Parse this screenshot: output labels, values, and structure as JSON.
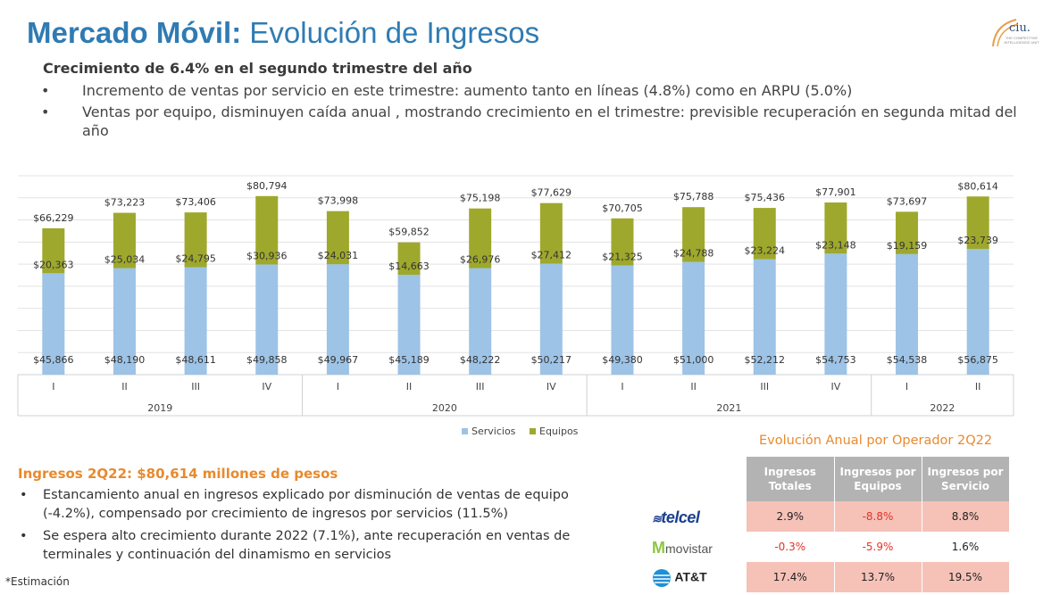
{
  "header": {
    "title_bold": "Mercado Móvil:",
    "title_rest": " Evolución de Ingresos",
    "logo_text": "ciu.",
    "logo_subtext": "THE COMPETITIVE INTELLIGENCE UNIT"
  },
  "summary": {
    "subtitle": "Crecimiento de 6.4% en el  segundo trimestre del año",
    "bullets": [
      "Incremento de ventas por servicio en este trimestre: aumento tanto  en líneas (4.8%) como en ARPU (5.0%)",
      "Ventas por equipo, disminuyen caída anual , mostrando crecimiento en el trimestre: previsible recuperación en segunda mitad del año"
    ]
  },
  "chart_data": {
    "type": "bar",
    "stacked": true,
    "categories": [
      "I",
      "II",
      "III",
      "IV",
      "I",
      "II",
      "III",
      "IV",
      "I",
      "II",
      "III",
      "IV",
      "I",
      "II"
    ],
    "groups": [
      {
        "label": "2019",
        "span": 4
      },
      {
        "label": "2020",
        "span": 4
      },
      {
        "label": "2021",
        "span": 4
      },
      {
        "label": "2022",
        "span": 2
      }
    ],
    "series": [
      {
        "name": "Servicios",
        "color": "#9dc3e6",
        "values": [
          45866,
          48190,
          48611,
          49858,
          49967,
          45189,
          48222,
          50217,
          49380,
          51000,
          52212,
          54753,
          54538,
          56875
        ],
        "labels": [
          "$45,866",
          "$48,190",
          "$48,611",
          "$49,858",
          "$49,967",
          "$45,189",
          "$48,222",
          "$50,217",
          "$49,380",
          "$51,000",
          "$52,212",
          "$54,753",
          "$54,538",
          "$56,875"
        ]
      },
      {
        "name": "Equipos",
        "color": "#9ea82c",
        "values": [
          20363,
          25034,
          24795,
          30936,
          24031,
          14663,
          26976,
          27412,
          21325,
          24788,
          23224,
          23148,
          19159,
          23739
        ],
        "labels": [
          "$20,363",
          "$25,034",
          "$24,795",
          "$30,936",
          "$24,031",
          "$14,663",
          "$26,976",
          "$27,412",
          "$21,325",
          "$24,788",
          "$23,224",
          "$23,148",
          "$19,159",
          "$23,739"
        ]
      }
    ],
    "totals": [
      "$66,229",
      "$73,223",
      "$73,406",
      "$80,794",
      "$73,998",
      "$59,852",
      "$75,198",
      "$77,629",
      "$70,705",
      "$75,788",
      "$75,436",
      "$77,901",
      "$73,697",
      "$80,614"
    ],
    "total_values": [
      66229,
      73223,
      73406,
      80794,
      73998,
      59852,
      75198,
      77629,
      70705,
      75788,
      75436,
      77901,
      73697,
      80614
    ],
    "ylim": [
      0,
      90000
    ],
    "legend_position": "bottom",
    "grid": true
  },
  "bottom": {
    "title": "Ingresos 2Q22: $80,614 millones de pesos",
    "bullets": [
      "Estancamiento anual en ingresos explicado por disminución de ventas de equipo (-4.2%), compensado por crecimiento de ingresos por servicios (11.5%)",
      "Se espera alto crecimiento durante 2022 (7.1%), ante recuperación en ventas de terminales y continuación del dinamismo en servicios"
    ],
    "note": "*Estimación"
  },
  "operators": {
    "title": "Evolución Anual por Operador 2Q22",
    "headers": [
      "Ingresos Totales",
      "Ingresos por Equipos",
      "Ingresos por Servicio"
    ],
    "rows": [
      {
        "operator": "telcel",
        "values": [
          "2.9%",
          "-8.8%",
          "8.8%"
        ]
      },
      {
        "operator": "movistar",
        "values": [
          "-0.3%",
          "-5.9%",
          "1.6%"
        ]
      },
      {
        "operator": "AT&T",
        "values": [
          "17.4%",
          "13.7%",
          "19.5%"
        ]
      }
    ]
  }
}
